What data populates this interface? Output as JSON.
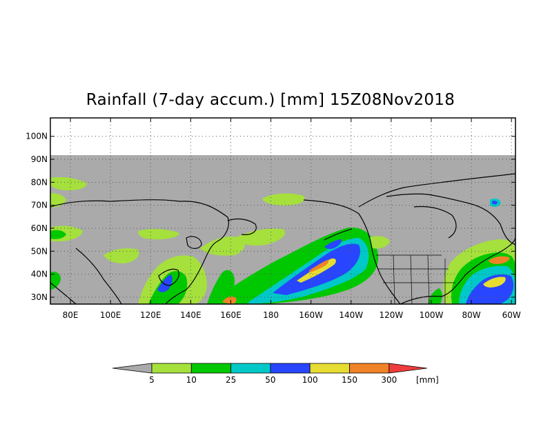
{
  "title": "Rainfall (7-day accum.) [mm] 15Z08Nov2018",
  "map": {
    "lat_labels": [
      "100N",
      "90N",
      "80N",
      "70N",
      "60N",
      "50N",
      "40N",
      "30N"
    ],
    "lon_labels": [
      "80E",
      "100E",
      "120E",
      "140E",
      "160E",
      "180",
      "160W",
      "140W",
      "120W",
      "100W",
      "80W",
      "60W"
    ],
    "grid": true,
    "no_data_color": "#aaaaaa",
    "land_outline_color": "#000000"
  },
  "colorbar": {
    "ticks": [
      "5",
      "10",
      "25",
      "50",
      "100",
      "150",
      "300"
    ],
    "unit": "[mm]",
    "colors": [
      "#aaaaaa",
      "#a5e03c",
      "#00c800",
      "#00c8c8",
      "#2846ff",
      "#e6dc32",
      "#f08228",
      "#f03c3c"
    ]
  }
}
